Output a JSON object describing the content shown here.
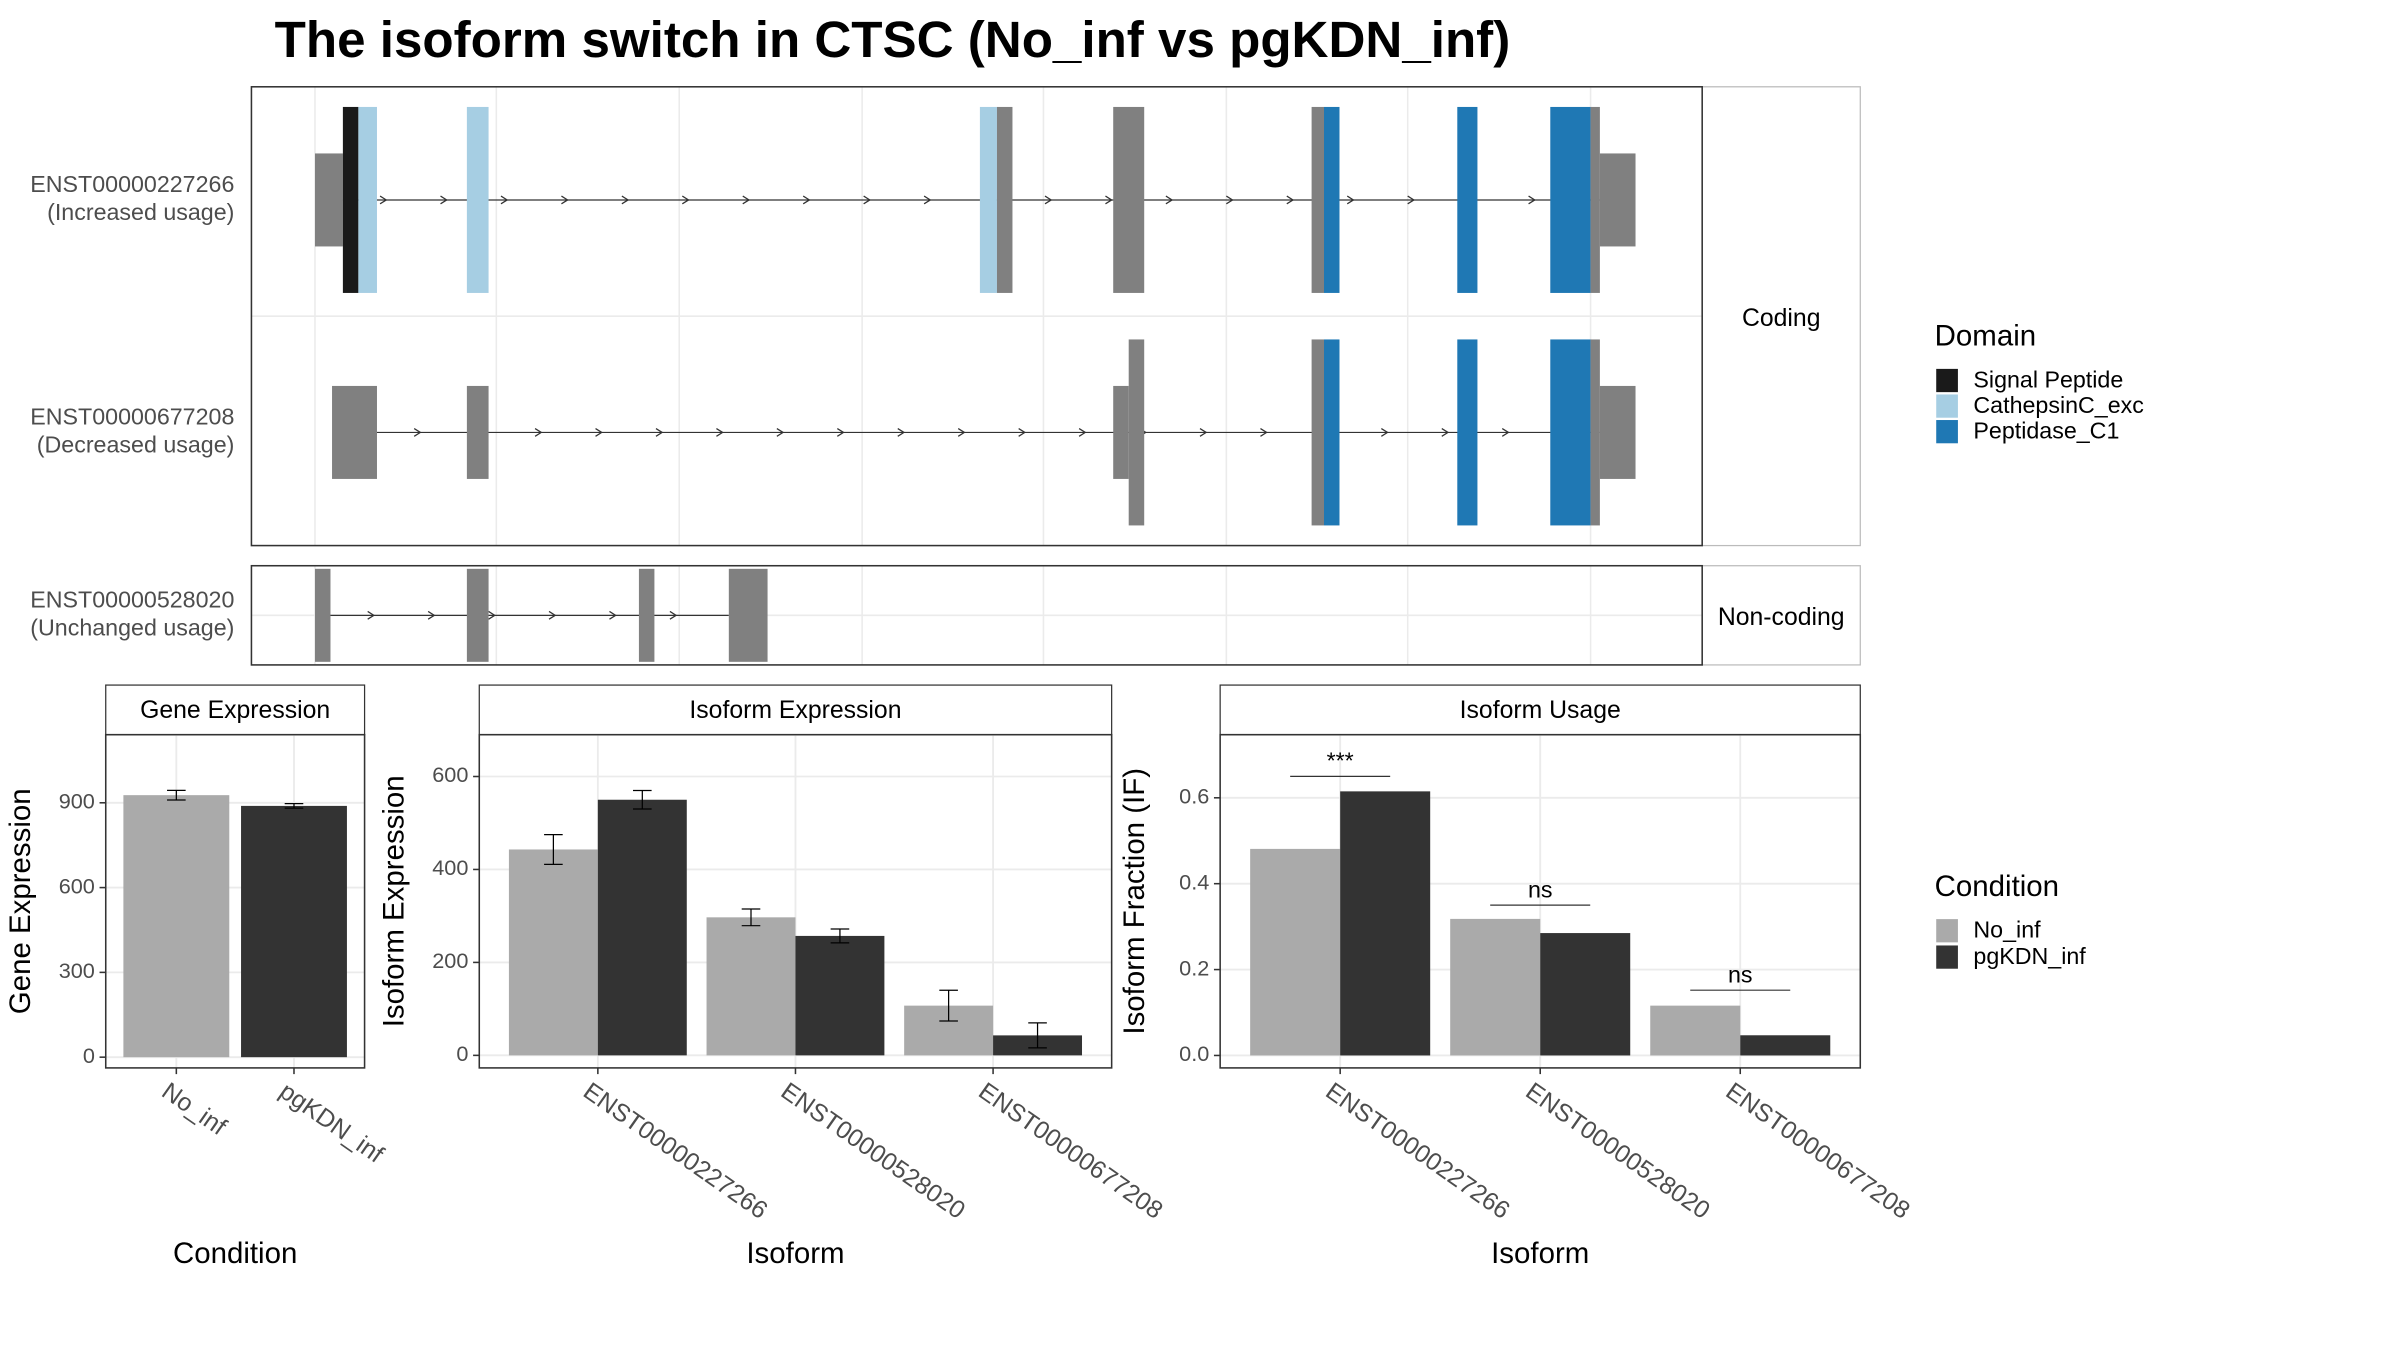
{
  "title": "The isoform switch in CTSC (No_inf vs pgKDN_inf)",
  "transcript_plot": {
    "transcripts": [
      {
        "id": "ENST00000227266",
        "usage": "(Increased usage)"
      },
      {
        "id": "ENST00000677208",
        "usage": "(Decreased usage)"
      },
      {
        "id": "ENST00000528020",
        "usage": "(Unchanged usage)"
      }
    ],
    "groups": [
      "Coding",
      "Non-coding"
    ],
    "legend_title": "Domain",
    "domains": [
      {
        "name": "Signal Peptide",
        "color": "#1a1a1a"
      },
      {
        "name": "CathepsinC_exc",
        "color": "#a6cee3"
      },
      {
        "name": "Peptidase_C1",
        "color": "#1f78b4"
      }
    ],
    "exon_color": "#808080"
  },
  "chart_data": [
    {
      "type": "bar",
      "title": "Gene Expression",
      "x_label": "Condition",
      "y_label": "Gene Expression",
      "categories": [
        "No_inf",
        "pgKDN_inf"
      ],
      "values": [
        927,
        889
      ],
      "errors": [
        17,
        8
      ],
      "colors": [
        "#aaaaaa",
        "#333333"
      ],
      "ylim": [
        -38,
        1141
      ],
      "yticks": [
        0,
        300,
        600,
        900
      ],
      "grid": true
    },
    {
      "type": "bar",
      "title": "Isoform Expression",
      "x_label": "Isoform",
      "y_label": "Isoform Expression",
      "categories": [
        "ENST00000227266",
        "ENST00000528020",
        "ENST00000677208"
      ],
      "series": [
        {
          "name": "No_inf",
          "color": "#aaaaaa",
          "values": [
            443,
            297,
            107
          ],
          "errors": [
            32,
            18,
            33
          ]
        },
        {
          "name": "pgKDN_inf",
          "color": "#333333",
          "values": [
            550,
            257,
            43
          ],
          "errors": [
            20,
            15,
            27
          ]
        }
      ],
      "ylim": [
        -27,
        690
      ],
      "yticks": [
        0,
        200,
        400,
        600
      ],
      "grid": true
    },
    {
      "type": "bar",
      "title": "Isoform Usage",
      "x_label": "Isoform",
      "y_label": "Isoform Fraction (IF)",
      "categories": [
        "ENST00000227266",
        "ENST00000528020",
        "ENST00000677208"
      ],
      "series": [
        {
          "name": "No_inf",
          "color": "#aaaaaa",
          "values": [
            0.481,
            0.318,
            0.116
          ]
        },
        {
          "name": "pgKDN_inf",
          "color": "#333333",
          "values": [
            0.615,
            0.285,
            0.047
          ]
        }
      ],
      "annotations": [
        {
          "label": "***",
          "category": 0,
          "y": 0.65
        },
        {
          "label": "ns",
          "category": 1,
          "y": 0.35
        },
        {
          "label": "ns",
          "category": 2,
          "y": 0.152
        }
      ],
      "ylim": [
        -0.029,
        0.747
      ],
      "yticks": [
        {
          "value": 0,
          "label": "0.0"
        },
        0.2,
        0.4,
        0.6
      ],
      "grid": true,
      "legend_title": "Condition"
    }
  ]
}
